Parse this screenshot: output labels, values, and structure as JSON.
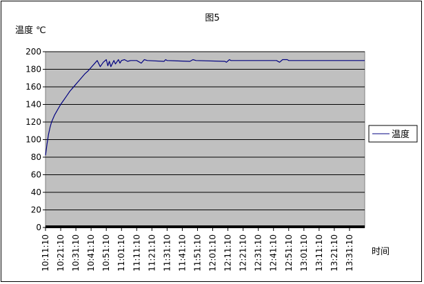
{
  "chart_data": {
    "type": "line",
    "title": "图5",
    "ylabel": "温度 ℃",
    "xlabel": "时间",
    "ylim": [
      0,
      200
    ],
    "yticks": [
      0,
      20,
      40,
      60,
      80,
      100,
      120,
      140,
      160,
      180,
      200
    ],
    "x_tick_labels": [
      "10:11:10",
      "10:21:10",
      "10:31:10",
      "10:41:10",
      "10:51:10",
      "11:01:10",
      "11:11:10",
      "11:21:10",
      "11:31:10",
      "11:41:10",
      "11:51:10",
      "12:01:10",
      "12:11:10",
      "12:21:10",
      "12:31:10",
      "12:41:10",
      "12:51:10",
      "13:01:10",
      "13:11:10",
      "13:21:10",
      "13:31:10"
    ],
    "x_range": [
      "10:11:10",
      "13:41:10"
    ],
    "grid": true,
    "legend_position": "right",
    "plot_background": "#c0c0c0",
    "series": [
      {
        "name": "温度",
        "color": "#000080",
        "points": [
          [
            "10:11:10",
            82
          ],
          [
            "10:12:10",
            95
          ],
          [
            "10:13:10",
            106
          ],
          [
            "10:14:10",
            114
          ],
          [
            "10:15:10",
            120
          ],
          [
            "10:17:10",
            128
          ],
          [
            "10:19:10",
            134
          ],
          [
            "10:21:10",
            140
          ],
          [
            "10:23:10",
            145
          ],
          [
            "10:25:10",
            150
          ],
          [
            "10:27:10",
            155
          ],
          [
            "10:29:10",
            159
          ],
          [
            "10:31:10",
            163
          ],
          [
            "10:33:10",
            167
          ],
          [
            "10:35:10",
            171
          ],
          [
            "10:37:10",
            175
          ],
          [
            "10:39:10",
            178
          ],
          [
            "10:41:10",
            182
          ],
          [
            "10:43:10",
            186
          ],
          [
            "10:45:10",
            190
          ],
          [
            "10:47:10",
            183
          ],
          [
            "10:49:10",
            188
          ],
          [
            "10:51:10",
            191
          ],
          [
            "10:52:10",
            184
          ],
          [
            "10:53:10",
            189
          ],
          [
            "10:54:10",
            183
          ],
          [
            "10:56:10",
            190
          ],
          [
            "10:57:10",
            186
          ],
          [
            "10:59:10",
            191
          ],
          [
            "11:00:10",
            187
          ],
          [
            "11:01:10",
            190
          ],
          [
            "11:03:10",
            191
          ],
          [
            "11:05:10",
            189
          ],
          [
            "11:07:10",
            190
          ],
          [
            "11:11:10",
            190
          ],
          [
            "11:14:10",
            187
          ],
          [
            "11:16:10",
            191
          ],
          [
            "11:18:10",
            190
          ],
          [
            "11:29:10",
            189
          ],
          [
            "11:30:10",
            191
          ],
          [
            "11:31:10",
            190
          ],
          [
            "11:46:10",
            189
          ],
          [
            "11:48:10",
            191
          ],
          [
            "11:50:10",
            190
          ],
          [
            "12:09:10",
            189
          ],
          [
            "12:10:10",
            188
          ],
          [
            "12:12:10",
            191
          ],
          [
            "12:13:10",
            190
          ],
          [
            "12:43:10",
            190
          ],
          [
            "12:45:10",
            188
          ],
          [
            "12:47:10",
            191
          ],
          [
            "12:50:10",
            191
          ],
          [
            "12:51:10",
            190
          ],
          [
            "13:41:10",
            190
          ]
        ]
      }
    ]
  }
}
